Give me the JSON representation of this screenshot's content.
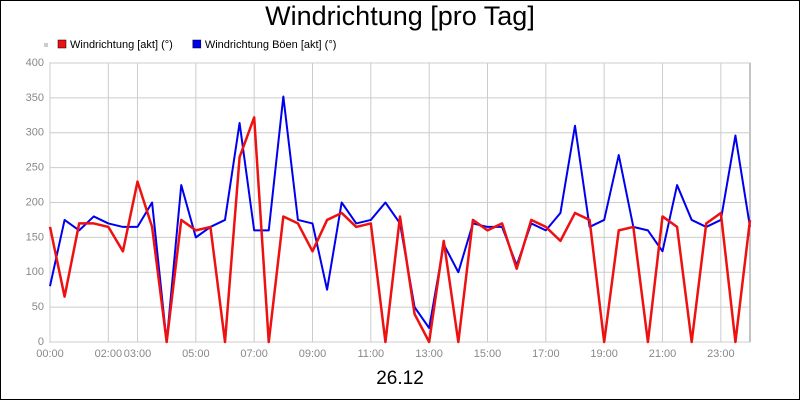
{
  "chart_data": {
    "type": "line",
    "title": "Windrichtung [pro Tag]",
    "xlabel": "26.12",
    "x": [
      0,
      0.5,
      1,
      1.5,
      2,
      2.5,
      3,
      3.5,
      4,
      4.5,
      5,
      5.5,
      6,
      6.5,
      7,
      7.5,
      8,
      8.5,
      9,
      9.5,
      10,
      10.5,
      11,
      11.5,
      12,
      12.5,
      13,
      13.5,
      14,
      14.5,
      15,
      15.5,
      16,
      16.5,
      17,
      17.5,
      18,
      18.5,
      19,
      19.5,
      20,
      20.5,
      21,
      21.5,
      22,
      22.5,
      23,
      23.5,
      24
    ],
    "series": [
      {
        "name": "Windrichtung [akt] (°)",
        "color": "#ee1111",
        "values": [
          165,
          65,
          170,
          170,
          165,
          130,
          230,
          165,
          0,
          175,
          160,
          165,
          0,
          265,
          322,
          0,
          180,
          170,
          130,
          175,
          185,
          165,
          170,
          0,
          180,
          40,
          0,
          145,
          0,
          175,
          160,
          170,
          105,
          175,
          165,
          145,
          185,
          175,
          0,
          160,
          165,
          0,
          180,
          165,
          0,
          170,
          185,
          0,
          175
        ]
      },
      {
        "name": "Windrichtung Böen [akt] (°)",
        "color": "#0000ee",
        "values": [
          80,
          175,
          160,
          180,
          170,
          165,
          165,
          200,
          0,
          225,
          150,
          165,
          175,
          314,
          160,
          160,
          352,
          175,
          170,
          75,
          200,
          170,
          175,
          200,
          170,
          50,
          20,
          140,
          100,
          170,
          165,
          165,
          110,
          170,
          160,
          185,
          310,
          165,
          175,
          268,
          165,
          160,
          130,
          225,
          175,
          165,
          175,
          296,
          165
        ]
      }
    ],
    "xlim": [
      0,
      24
    ],
    "xticks": [
      {
        "value": 0,
        "label": "00:00"
      },
      {
        "value": 2,
        "label": "02:00"
      },
      {
        "value": 3,
        "label": "03:00"
      },
      {
        "value": 5,
        "label": "05:00"
      },
      {
        "value": 7,
        "label": "07:00"
      },
      {
        "value": 9,
        "label": "09:00"
      },
      {
        "value": 11,
        "label": "11:00"
      },
      {
        "value": 13,
        "label": "13:00"
      },
      {
        "value": 15,
        "label": "15:00"
      },
      {
        "value": 17,
        "label": "17:00"
      },
      {
        "value": 19,
        "label": "19:00"
      },
      {
        "value": 21,
        "label": "21:00"
      },
      {
        "value": 23,
        "label": "23:00"
      }
    ],
    "ylim": [
      0,
      400
    ],
    "yticks": [
      0,
      50,
      100,
      150,
      200,
      250,
      300,
      350,
      400
    ],
    "grid": true
  }
}
